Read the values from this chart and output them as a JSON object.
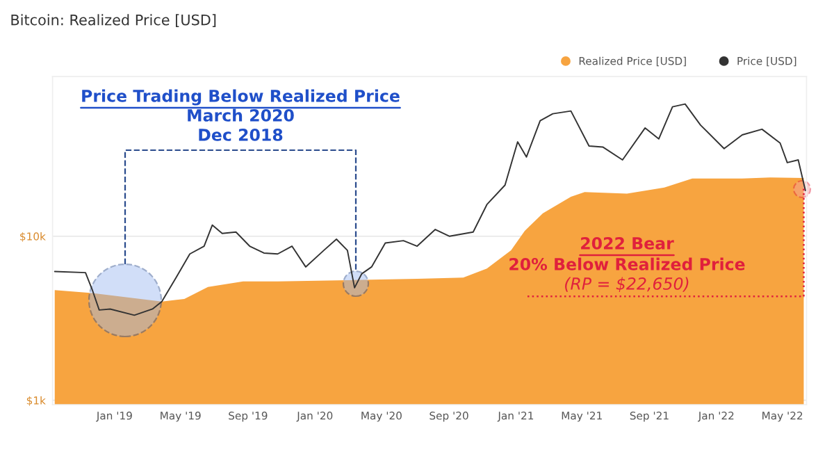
{
  "chart_data": {
    "type": "area",
    "title": "Bitcoin: Realized Price [USD]",
    "series": [
      {
        "name": "Realized Price [USD]",
        "color": "#f7a440",
        "x": [
          "2018-09-14",
          "2018-11-21",
          "2019-03-28",
          "2019-05-08",
          "2019-06-20",
          "2019-08-23",
          "2019-10-25",
          "2020-02-29",
          "2020-07-05",
          "2020-09-27",
          "2020-11-09",
          "2020-12-23",
          "2021-01-17",
          "2021-02-19",
          "2021-04-11",
          "2021-05-06",
          "2021-07-22",
          "2021-09-28",
          "2021-11-18",
          "2022-02-17",
          "2022-04-09",
          "2022-06-09"
        ],
        "values": [
          4700,
          4500,
          4000,
          4150,
          4900,
          5300,
          5300,
          5400,
          5500,
          5600,
          6350,
          8200,
          10800,
          13800,
          17400,
          18600,
          18200,
          19800,
          22500,
          22500,
          22800,
          22650
        ]
      },
      {
        "name": "Price [USD]",
        "type": "line",
        "color": "#333333",
        "x": [
          "2018-09-14",
          "2018-11-09",
          "2018-11-21",
          "2018-12-04",
          "2018-12-24",
          "2019-02-06",
          "2019-03-11",
          "2019-03-28",
          "2019-04-23",
          "2019-05-18",
          "2019-06-13",
          "2019-06-28",
          "2019-07-16",
          "2019-08-10",
          "2019-09-04",
          "2019-09-30",
          "2019-10-25",
          "2019-11-20",
          "2019-12-15",
          "2020-01-17",
          "2020-02-09",
          "2020-02-29",
          "2020-03-13",
          "2020-03-26",
          "2020-04-13",
          "2020-05-08",
          "2020-06-10",
          "2020-07-05",
          "2020-08-07",
          "2020-09-02",
          "2020-10-15",
          "2020-11-09",
          "2020-12-12",
          "2021-01-04",
          "2021-01-20",
          "2021-02-14",
          "2021-03-09",
          "2021-04-11",
          "2021-05-14",
          "2021-06-08",
          "2021-07-14",
          "2021-08-24",
          "2021-09-18",
          "2021-10-13",
          "2021-11-05",
          "2021-12-03",
          "2022-01-15",
          "2022-02-17",
          "2022-03-25",
          "2022-04-27",
          "2022-05-10",
          "2022-05-30",
          "2022-06-12"
        ],
        "values": [
          6100,
          6000,
          4750,
          3550,
          3600,
          3300,
          3600,
          4000,
          5600,
          7800,
          8700,
          11700,
          10400,
          10600,
          8700,
          7900,
          7800,
          8700,
          6500,
          8200,
          9600,
          8200,
          4850,
          5900,
          6500,
          9100,
          9400,
          8700,
          11000,
          10000,
          10600,
          15600,
          20500,
          37600,
          30400,
          50600,
          55800,
          58000,
          35500,
          35000,
          29200,
          45700,
          39200,
          61500,
          64000,
          47600,
          34200,
          41500,
          44900,
          37000,
          28100,
          29200,
          19000
        ]
      }
    ],
    "xlim": [
      "2018-09-10",
      "2022-06-14"
    ],
    "xticks": [
      {
        "value": "2019-01-01",
        "label": "Jan '19"
      },
      {
        "value": "2019-05-01",
        "label": "May '19"
      },
      {
        "value": "2019-09-01",
        "label": "Sep '19"
      },
      {
        "value": "2020-01-01",
        "label": "Jan '20"
      },
      {
        "value": "2020-05-01",
        "label": "May '20"
      },
      {
        "value": "2020-09-01",
        "label": "Sep '20"
      },
      {
        "value": "2021-01-01",
        "label": "Jan '21"
      },
      {
        "value": "2021-05-01",
        "label": "May '21"
      },
      {
        "value": "2021-09-01",
        "label": "Sep '21"
      },
      {
        "value": "2022-01-01",
        "label": "Jan '22"
      },
      {
        "value": "2022-05-01",
        "label": "May '22"
      }
    ],
    "ylim": [
      940,
      94000
    ],
    "yticks": [
      {
        "value": 1000,
        "label": "$1k"
      },
      {
        "value": 10000,
        "label": "$10k"
      }
    ],
    "ref_lines": [
      {
        "axis": "y",
        "value": 4300,
        "color": "#e0203c",
        "line_style": "dotted"
      },
      {
        "axis": "x",
        "value": "2022-06-09",
        "color": "#e0203c",
        "line_style": "dotted"
      }
    ],
    "log": "y",
    "grid": "y",
    "legend": "top right",
    "marker": "none",
    "line_style": "solid",
    "annotations": [
      "Price Trading Below Realized Price",
      "March 2020",
      "Dec 2018",
      "2022 Bear",
      "20% Below Realized Price",
      "(RP = $22,650)"
    ]
  }
}
